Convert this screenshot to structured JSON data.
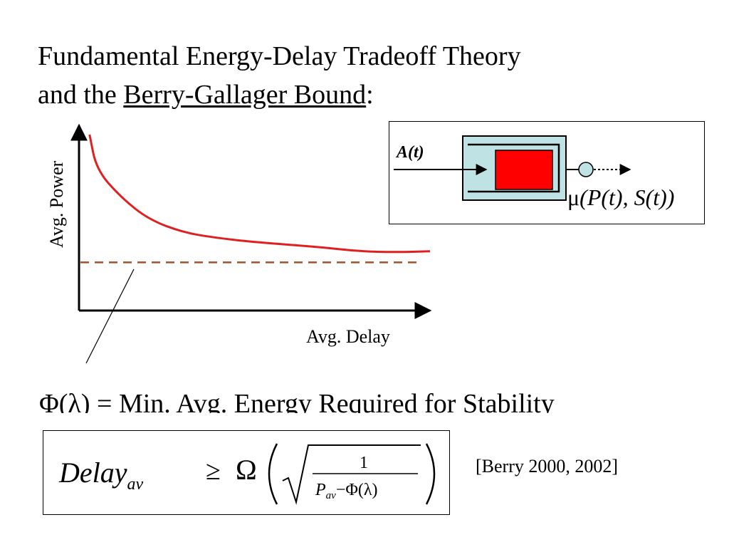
{
  "title": {
    "line1": "Fundamental Energy-Delay Tradeoff Theory",
    "line2_prefix": "and the ",
    "line2_underlined": "Berry-Gallager Bound",
    "line2_suffix": ":"
  },
  "chart_data": {
    "type": "line",
    "xlabel": "Avg. Delay",
    "ylabel": "Avg. Power",
    "grid": false,
    "curve_color": "#e02020",
    "bound_color": "#a0522d",
    "series": [
      {
        "name": "",
        "x": [
          0.03,
          0.05,
          0.12,
          0.2,
          0.3,
          0.4,
          0.5,
          0.6,
          0.7,
          0.8,
          0.9,
          1.0
        ],
        "y": [
          0.95,
          0.76,
          0.61,
          0.49,
          0.42,
          0.39,
          0.37,
          0.355,
          0.34,
          0.32,
          0.315,
          0.32
        ]
      }
    ],
    "bound_y": 0.26
  },
  "queue_diagram": {
    "arrival_label": "A(t)",
    "service_symbol": "μ",
    "service_args": "(P(t), S(t))",
    "buffer_color": "#bfe2e4",
    "packet_color": "#ff0000",
    "server_color": "#bfe2e4"
  },
  "phi_definition": "Φ(λ) = Min. Avg. Energy Required for Stability",
  "formula": {
    "lhs_base": "Delay",
    "lhs_sub": "av",
    "relation": "≥",
    "omega": "Ω",
    "numerator": "1",
    "den_p": "P",
    "den_p_sub": "av",
    "den_rest": "−Φ(λ)"
  },
  "citation": "[Berry 2000, 2002]"
}
